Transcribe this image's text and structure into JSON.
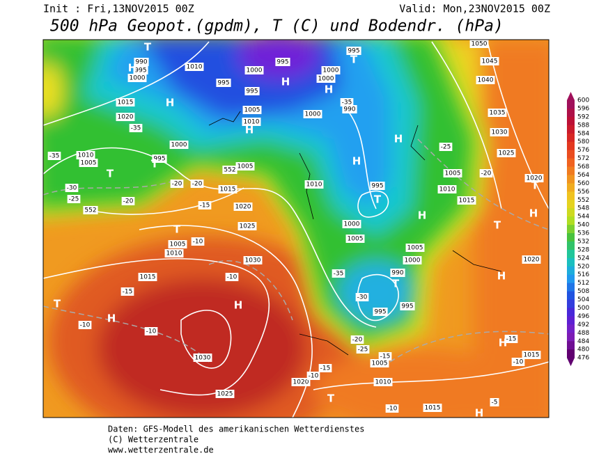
{
  "header": {
    "init": "Init : Fri,13NOV2015 00Z",
    "valid": "Valid: Mon,23NOV2015 00Z",
    "title": "500 hPa Geopot.(gpdm), T (C) und Bodendr. (hPa)"
  },
  "map": {
    "labels": [
      "T",
      "990",
      "995",
      "1000",
      "H",
      "1010",
      "995",
      "1000",
      "995",
      "995",
      "H",
      "T",
      "995",
      "1000",
      "1000",
      "H",
      "1015",
      "H",
      "1020",
      "-35",
      "1005",
      "1010",
      "H",
      "1000",
      "990",
      "-35",
      "1000",
      "995",
      "T",
      "H",
      "1010",
      "1005",
      "T",
      "-35",
      "-30",
      "-25",
      "-20",
      "552",
      "1005",
      "552",
      "-20",
      "-20",
      "1015",
      "1010",
      "H",
      "995",
      "T",
      "1005",
      "1010",
      "-25",
      "1050",
      "1045",
      "1040",
      "1035",
      "1030",
      "1025",
      "1020",
      "T",
      "H",
      "T",
      "1015",
      "-20",
      "-15",
      "1020",
      "T",
      "1025",
      "1005",
      "1010",
      "-10",
      "1000",
      "1005",
      "1005",
      "1000",
      "990",
      "T",
      "H",
      "1015",
      "1030",
      "-10",
      "H",
      "-15",
      "T",
      "H",
      "-10",
      "-10",
      "-30",
      "995",
      "995",
      "1030",
      "-35",
      "1020",
      "H",
      "H",
      "-15",
      "1015",
      "-10",
      "-20",
      "-25",
      "1005",
      "-15",
      "1020",
      "-10",
      "1010",
      "T",
      "1025",
      "-10",
      "1015",
      "H",
      "-5",
      "-15"
    ]
  },
  "colorbar": {
    "labels": [
      600,
      596,
      592,
      588,
      584,
      580,
      576,
      572,
      568,
      564,
      560,
      556,
      552,
      548,
      544,
      540,
      536,
      532,
      528,
      524,
      520,
      516,
      512,
      508,
      504,
      500,
      496,
      492,
      488,
      484,
      480,
      476
    ]
  },
  "footer": {
    "lines": [
      "Daten: GFS-Modell des amerikanischen Wetterdienstes",
      "(C) Wetterzentrale",
      "www.wetterzentrale.de"
    ]
  }
}
